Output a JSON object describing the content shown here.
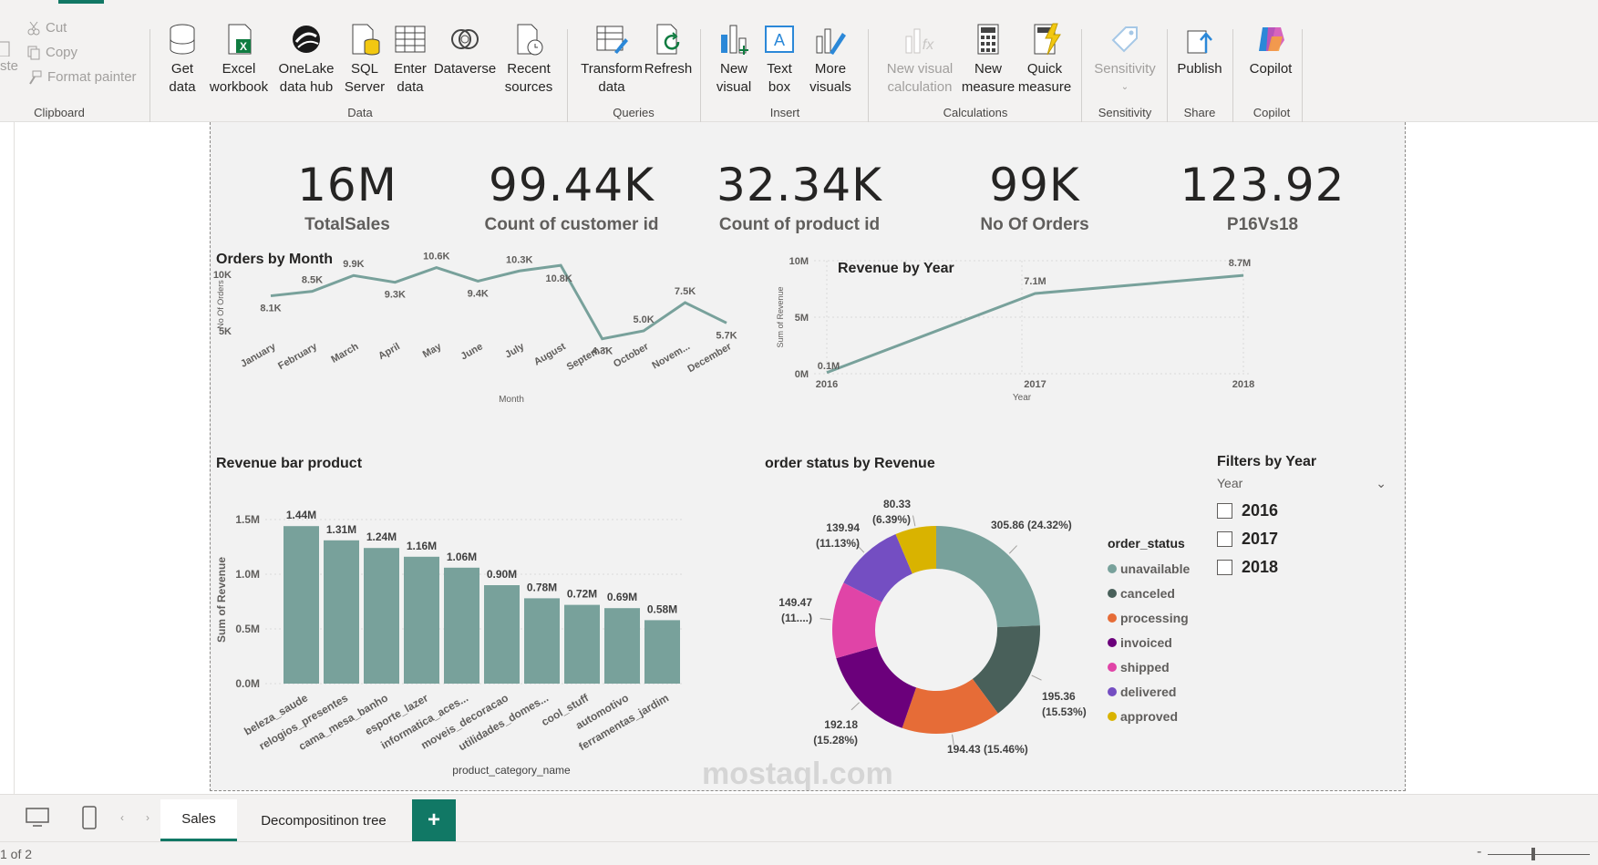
{
  "ribbon": {
    "clipboard": {
      "cut": "Cut",
      "copy": "Copy",
      "format_painter": "Format painter",
      "paste": "ste",
      "label": "Clipboard"
    },
    "data_group": {
      "label": "Data",
      "get_data": [
        "Get",
        "data"
      ],
      "excel": [
        "Excel",
        "workbook"
      ],
      "onelake": [
        "OneLake",
        "data hub"
      ],
      "sql": [
        "SQL",
        "Server"
      ],
      "enter": [
        "Enter",
        "data"
      ],
      "dataverse": "Dataverse",
      "recent": [
        "Recent",
        "sources"
      ]
    },
    "queries": {
      "label": "Queries",
      "transform": [
        "Transform",
        "data"
      ],
      "refresh": "Refresh"
    },
    "insert": {
      "label": "Insert",
      "new_visual": [
        "New",
        "visual"
      ],
      "text_box": [
        "Text",
        "box"
      ],
      "more": [
        "More",
        "visuals"
      ]
    },
    "calculations": {
      "label": "Calculations",
      "new_visual_calc": [
        "New visual",
        "calculation"
      ],
      "new_measure": [
        "New",
        "measure"
      ],
      "quick_measure": [
        "Quick",
        "measure"
      ]
    },
    "sensitivity": {
      "label": "Sensitivity",
      "btn": "Sensitivity"
    },
    "share": {
      "label": "Share",
      "publish": "Publish"
    },
    "copilot": {
      "label": "Copilot",
      "btn": "Copilot"
    }
  },
  "kpis": [
    {
      "value": "16M",
      "label": "TotalSales"
    },
    {
      "value": "99.44K",
      "label": "Count of customer id"
    },
    {
      "value": "32.34K",
      "label": "Count of product id"
    },
    {
      "value": "99K",
      "label": "No Of Orders"
    },
    {
      "value": "123.92",
      "label": "P16Vs18"
    }
  ],
  "chart_data": [
    {
      "type": "line",
      "title": "Orders by Month",
      "xlabel": "Month",
      "ylabel": "No Of Orders",
      "categories": [
        "January",
        "February",
        "March",
        "April",
        "May",
        "June",
        "July",
        "August",
        "Septem...",
        "October",
        "Novem...",
        "December"
      ],
      "values": [
        8100,
        8500,
        9900,
        9300,
        10600,
        9400,
        10300,
        10800,
        4300,
        5000,
        7500,
        5700
      ],
      "labels": [
        "8.1K",
        "8.5K",
        "9.9K",
        "9.3K",
        "10.6K",
        "9.4K",
        "10.3K",
        "10.8K",
        "4.3K",
        "5.0K",
        "7.5K",
        "5.7K"
      ],
      "yticks": [
        "5K",
        "10K"
      ],
      "color": "#78a19b"
    },
    {
      "type": "line",
      "title": "Revenue by Year",
      "xlabel": "Year",
      "ylabel": "Sum of Revenue",
      "categories": [
        "2016",
        "2017",
        "2018"
      ],
      "values": [
        0.1,
        7.1,
        8.7
      ],
      "labels": [
        "0.1M",
        "7.1M",
        "8.7M"
      ],
      "yticks": [
        "0M",
        "5M",
        "10M"
      ],
      "ylim": [
        0,
        10
      ],
      "color": "#78a19b"
    },
    {
      "type": "bar",
      "title": "Revenue bar product",
      "xlabel": "product_category_name",
      "ylabel": "Sum of Revenue",
      "categories": [
        "beleza_saude",
        "relogios_presentes",
        "cama_mesa_banho",
        "esporte_lazer",
        "informatica_aces...",
        "moveis_decoracao",
        "utilidades_domes...",
        "cool_stuff",
        "automotivo",
        "ferramentas_jardim"
      ],
      "values": [
        1.44,
        1.31,
        1.24,
        1.16,
        1.06,
        0.9,
        0.78,
        0.72,
        0.69,
        0.58
      ],
      "labels": [
        "1.44M",
        "1.31M",
        "1.24M",
        "1.16M",
        "1.06M",
        "0.90M",
        "0.78M",
        "0.72M",
        "0.69M",
        "0.58M"
      ],
      "yticks": [
        "0.0M",
        "0.5M",
        "1.0M",
        "1.5M"
      ],
      "ylim": [
        0,
        1.6
      ],
      "color": "#78a19b"
    },
    {
      "type": "pie",
      "title": "order status by Revenue",
      "legend_title": "order_status",
      "slices": [
        {
          "name": "unavailable",
          "value": 305.86,
          "label": "305.86 (24.32%)",
          "color": "#78a19b"
        },
        {
          "name": "canceled",
          "value": 195.36,
          "label": "195.36 (15.53%)",
          "color": "#49605a"
        },
        {
          "name": "processing",
          "value": 194.43,
          "label": "194.43 (15.46%)",
          "color": "#e66c37"
        },
        {
          "name": "invoiced",
          "value": 192.18,
          "label": "192.18 (15.28%)",
          "color": "#6b007b"
        },
        {
          "name": "shipped",
          "value": 149.47,
          "label": "149.47 (11....)",
          "color": "#e044a7"
        },
        {
          "name": "delivered",
          "value": 139.94,
          "label": "139.94 (11.13%)",
          "color": "#744ec2"
        },
        {
          "name": "approved",
          "value": 80.33,
          "label": "80.33 (6.39%)",
          "color": "#d9b300"
        }
      ]
    }
  ],
  "slicer": {
    "title": "Filters by Year",
    "field": "Year",
    "options": [
      "2016",
      "2017",
      "2018"
    ]
  },
  "tabs": {
    "sales": "Sales",
    "decomp": "Decompositinon tree",
    "add": "+"
  },
  "status": {
    "page": "1 of 2"
  },
  "watermark": "mostaql.com"
}
